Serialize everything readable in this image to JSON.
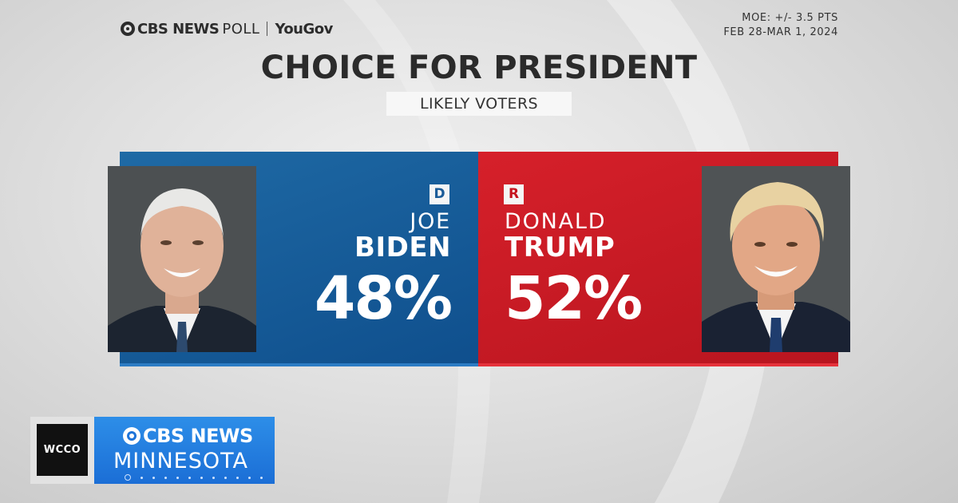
{
  "header": {
    "source_cbs": "CBS NEWS",
    "source_poll": "POLL",
    "source_partner": "YouGov",
    "moe": "MOE: +/- 3.5 PTS",
    "dates": "FEB 28-MAR 1, 2024"
  },
  "chart_data": {
    "type": "bar",
    "title": "CHOICE FOR PRESIDENT",
    "subtitle": "LIKELY VOTERS",
    "categories": [
      "BIDEN",
      "TRUMP"
    ],
    "values": [
      48,
      52
    ],
    "series": [
      {
        "first_name": "JOE",
        "last_name": "BIDEN",
        "party": "D",
        "value": 48,
        "label": "48%",
        "color": "#1a5b98"
      },
      {
        "first_name": "DONALD",
        "last_name": "TRUMP",
        "party": "R",
        "value": 52,
        "label": "52%",
        "color": "#c5151f"
      }
    ]
  },
  "station": {
    "call_sign": "WCCO",
    "network": "CBS NEWS",
    "region": "MINNESOTA"
  },
  "colors": {
    "democrat_blue": "#1a5b98",
    "republican_red": "#c5151f",
    "network_blue": "#1f74d9"
  }
}
